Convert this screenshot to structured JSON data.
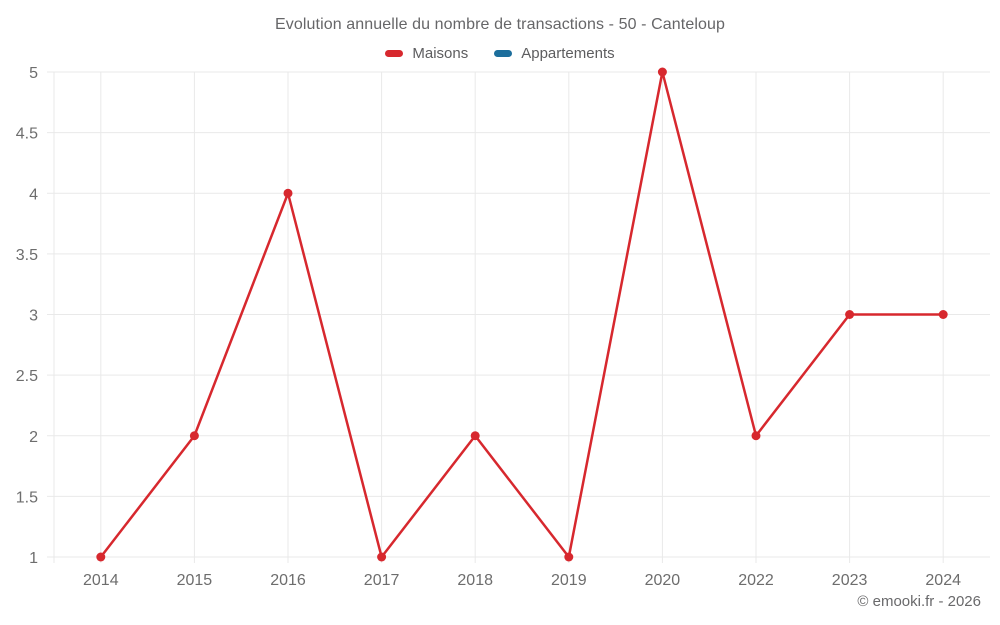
{
  "chart": {
    "title": "Evolution annuelle du nombre de transactions - 50 - Canteloup",
    "legend": [
      {
        "label": "Maisons",
        "color": "#d7282e"
      },
      {
        "label": "Appartements",
        "color": "#1c6e9c"
      }
    ]
  },
  "chart_data": {
    "type": "line",
    "title": "Evolution annuelle du nombre de transactions - 50 - Canteloup",
    "categories": [
      "2014",
      "2015",
      "2016",
      "2017",
      "2018",
      "2019",
      "2020",
      "2022",
      "2023",
      "2024"
    ],
    "series": [
      {
        "name": "Maisons",
        "color": "#d7282e",
        "values": [
          1,
          2,
          4,
          1,
          2,
          1,
          5,
          2,
          3,
          3
        ]
      },
      {
        "name": "Appartements",
        "color": "#1c6e9c",
        "values": []
      }
    ],
    "xlabel": "",
    "ylabel": "",
    "ylim": [
      1,
      5
    ],
    "ytick_step": 0.5,
    "grid": true,
    "grid_color": "#e9e9e9",
    "tick_label_color": "#6d6d6d",
    "legend_position": "top"
  },
  "footer": {
    "copyright": "© emooki.fr - 2026"
  }
}
